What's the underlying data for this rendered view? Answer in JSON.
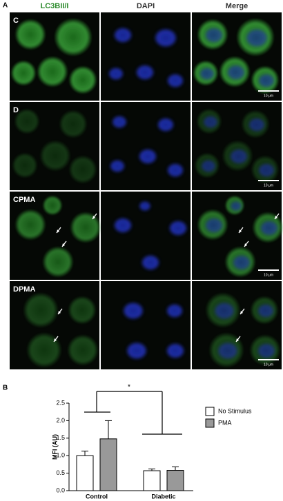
{
  "figure": {
    "panel_a": "A",
    "columns": [
      "LC3BII/I",
      "DAPI",
      "Merge"
    ],
    "rows": [
      {
        "label": "C",
        "scale_bar": "10 μm"
      },
      {
        "label": "D",
        "scale_bar": "10 μm"
      },
      {
        "label": "CPMA",
        "scale_bar": "10 μm"
      },
      {
        "label": "DPMA",
        "scale_bar": "10 μm"
      }
    ],
    "panel_b": "B"
  },
  "chart_data": {
    "type": "bar",
    "ylabel": "MFI (AU)",
    "annotation": "*",
    "categories": [
      "Control",
      "Diabetic"
    ],
    "series": [
      {
        "name": "No Stimulus",
        "color": "#ffffff",
        "values": [
          1.0,
          0.57
        ],
        "errors": [
          0.13,
          0.05
        ]
      },
      {
        "name": "PMA",
        "color": "#999999",
        "values": [
          1.48,
          0.58
        ],
        "errors": [
          0.52,
          0.1
        ]
      }
    ],
    "ylim": [
      0,
      2.5
    ],
    "yticks": [
      {
        "value": 0,
        "label": "0.0"
      },
      0.5,
      {
        "value": 1,
        "label": "1.0"
      },
      1.5,
      {
        "value": 2,
        "label": "2.0"
      },
      2.5
    ]
  }
}
